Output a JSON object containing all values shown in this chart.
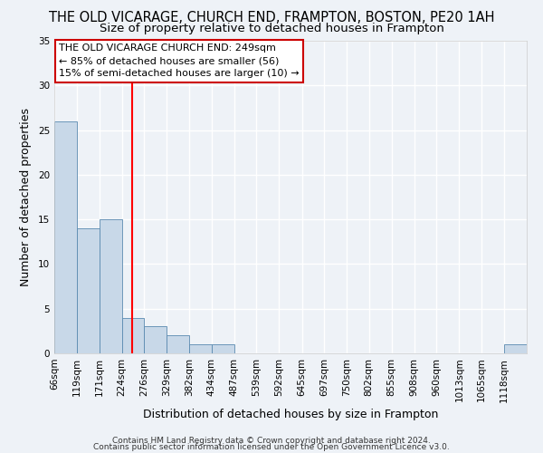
{
  "title": "THE OLD VICARAGE, CHURCH END, FRAMPTON, BOSTON, PE20 1AH",
  "subtitle": "Size of property relative to detached houses in Frampton",
  "xlabel": "Distribution of detached houses by size in Frampton",
  "ylabel": "Number of detached properties",
  "bin_labels": [
    "66sqm",
    "119sqm",
    "171sqm",
    "224sqm",
    "276sqm",
    "329sqm",
    "382sqm",
    "434sqm",
    "487sqm",
    "539sqm",
    "592sqm",
    "645sqm",
    "697sqm",
    "750sqm",
    "802sqm",
    "855sqm",
    "908sqm",
    "960sqm",
    "1013sqm",
    "1065sqm",
    "1118sqm"
  ],
  "bin_edges": [
    66,
    119,
    171,
    224,
    276,
    329,
    382,
    434,
    487,
    539,
    592,
    645,
    697,
    750,
    802,
    855,
    908,
    960,
    1013,
    1065,
    1118,
    1171
  ],
  "counts": [
    26,
    14,
    15,
    4,
    3,
    2,
    1,
    1,
    0,
    0,
    0,
    0,
    0,
    0,
    0,
    0,
    0,
    0,
    0,
    0,
    1
  ],
  "bar_color": "#c8d8e8",
  "bar_edge_color": "#5a8ab0",
  "red_line_x": 249,
  "ylim": [
    0,
    35
  ],
  "yticks": [
    0,
    5,
    10,
    15,
    20,
    25,
    30,
    35
  ],
  "annotation_line1": "THE OLD VICARAGE CHURCH END: 249sqm",
  "annotation_line2": "← 85% of detached houses are smaller (56)",
  "annotation_line3": "15% of semi-detached houses are larger (10) →",
  "footer_line1": "Contains HM Land Registry data © Crown copyright and database right 2024.",
  "footer_line2": "Contains public sector information licensed under the Open Government Licence v3.0.",
  "background_color": "#eef2f7",
  "grid_color": "#ffffff",
  "title_fontsize": 10.5,
  "subtitle_fontsize": 9.5,
  "axis_label_fontsize": 9,
  "tick_fontsize": 7.5,
  "annotation_fontsize": 8,
  "footer_fontsize": 6.5
}
